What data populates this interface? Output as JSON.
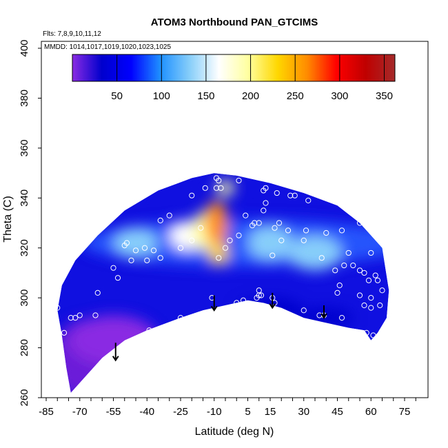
{
  "chart_data": {
    "type": "heatmap",
    "title": "ATOM3 Northbound PAN_GTCIMS",
    "annotations": [
      "Flts: 7,8,9,10,11,12",
      "MMDD: 1014,1017,1019,1020,1023,1025"
    ],
    "xlabel": "Latitude (deg N)",
    "ylabel": "Theta (C)",
    "xlim": [
      -85,
      80
    ],
    "ylim": [
      260,
      405
    ],
    "x_ticks": [
      "-85",
      "-70",
      "-55",
      "-40",
      "-25",
      "-10",
      "5",
      "15",
      "30",
      "45",
      "60",
      "75"
    ],
    "y_ticks": [
      "260",
      "280",
      "300",
      "320",
      "340",
      "360",
      "380",
      "400"
    ],
    "colorbar": {
      "min": 0,
      "max": 362,
      "ticks": [
        "50",
        "100",
        "150",
        "200",
        "250",
        "300",
        "350"
      ],
      "colors": [
        "#8a2be2",
        "#0000cd",
        "#0000ff",
        "#1e90ff",
        "#87cefa",
        "#ffffff",
        "#ffffa0",
        "#ffd700",
        "#ff8c00",
        "#ff0000",
        "#c00000",
        "#a52a2a"
      ]
    },
    "field_boundary": [
      [
        -74,
        262
      ],
      [
        -68,
        268
      ],
      [
        -60,
        276
      ],
      [
        -50,
        283
      ],
      [
        -40,
        287
      ],
      [
        -25,
        292
      ],
      [
        -15,
        295
      ],
      [
        -5,
        297
      ],
      [
        5,
        299
      ],
      [
        12,
        298
      ],
      [
        20,
        296
      ],
      [
        30,
        292
      ],
      [
        40,
        290
      ],
      [
        50,
        288
      ],
      [
        57,
        287
      ],
      [
        60,
        283
      ],
      [
        63,
        286
      ],
      [
        67,
        292
      ],
      [
        68,
        303
      ],
      [
        65,
        320
      ],
      [
        55,
        330
      ],
      [
        45,
        337
      ],
      [
        30,
        342
      ],
      [
        15,
        346
      ],
      [
        0,
        349
      ],
      [
        -10,
        350
      ],
      [
        -20,
        348
      ],
      [
        -35,
        343
      ],
      [
        -50,
        335
      ],
      [
        -62,
        325
      ],
      [
        -72,
        315
      ],
      [
        -78,
        305
      ],
      [
        -80,
        295
      ],
      [
        -78,
        285
      ],
      [
        -76,
        272
      ]
    ],
    "hotspots": [
      {
        "lat": -9,
        "theta": 330,
        "value": 250,
        "rx": 5,
        "ry": 9
      },
      {
        "lat": -8,
        "theta": 318,
        "value": 240,
        "rx": 4,
        "ry": 5
      },
      {
        "lat": -13,
        "theta": 327,
        "value": 200,
        "rx": 7,
        "ry": 8
      },
      {
        "lat": -5,
        "theta": 344,
        "value": 190,
        "rx": 4,
        "ry": 3
      },
      {
        "lat": -22,
        "theta": 325,
        "value": 150,
        "rx": 8,
        "ry": 6
      },
      {
        "lat": 15,
        "theta": 322,
        "value": 140,
        "rx": 10,
        "ry": 7
      },
      {
        "lat": 35,
        "theta": 318,
        "value": 130,
        "rx": 12,
        "ry": 7
      },
      {
        "lat": -45,
        "theta": 322,
        "value": 120,
        "rx": 10,
        "ry": 6
      }
    ],
    "low_regions": [
      {
        "lat": -55,
        "theta": 283,
        "value": 10,
        "rx": 20,
        "ry": 10
      },
      {
        "lat": 15,
        "theta": 295,
        "value": 20,
        "rx": 15,
        "ry": 5
      },
      {
        "lat": 40,
        "theta": 292,
        "value": 25,
        "rx": 12,
        "ry": 4
      }
    ],
    "arrows": [
      {
        "lat": -54,
        "theta_top": 282,
        "theta_bottom": 275
      },
      {
        "lat": -10,
        "theta_top": 301,
        "theta_bottom": 295
      },
      {
        "lat": 16,
        "theta_top": 302,
        "theta_bottom": 296
      },
      {
        "lat": 39,
        "theta_top": 297,
        "theta_bottom": 292
      }
    ],
    "points": [
      [
        -80,
        296
      ],
      [
        -77,
        286
      ],
      [
        -74,
        292
      ],
      [
        -72,
        292
      ],
      [
        -70,
        293
      ],
      [
        -63,
        293
      ],
      [
        -62,
        302
      ],
      [
        -69,
        263
      ],
      [
        -63,
        270
      ],
      [
        -53,
        308
      ],
      [
        -55,
        312
      ],
      [
        -47,
        315
      ],
      [
        -50,
        321
      ],
      [
        -49,
        322
      ],
      [
        -45,
        319
      ],
      [
        -41,
        320
      ],
      [
        -40,
        315
      ],
      [
        -39,
        287
      ],
      [
        -37,
        319
      ],
      [
        -34,
        331
      ],
      [
        -34,
        316
      ],
      [
        -30,
        333
      ],
      [
        -25,
        320
      ],
      [
        -25,
        292
      ],
      [
        -20,
        323
      ],
      [
        -20,
        341
      ],
      [
        -16,
        328
      ],
      [
        -14,
        344
      ],
      [
        -11,
        300
      ],
      [
        -9,
        344
      ],
      [
        -9,
        348
      ],
      [
        -8,
        347
      ],
      [
        -8,
        316
      ],
      [
        -7,
        344
      ],
      [
        -5,
        320
      ],
      [
        -3,
        323
      ],
      [
        1,
        325
      ],
      [
        -3,
        296
      ],
      [
        0,
        298
      ],
      [
        1,
        347
      ],
      [
        3,
        299
      ],
      [
        4,
        333
      ],
      [
        7,
        329
      ],
      [
        8,
        330
      ],
      [
        10,
        303
      ],
      [
        10,
        301
      ],
      [
        11,
        301
      ],
      [
        9,
        300
      ],
      [
        10,
        330
      ],
      [
        12,
        335
      ],
      [
        12,
        343
      ],
      [
        13,
        344
      ],
      [
        13,
        338
      ],
      [
        16,
        317
      ],
      [
        16,
        300
      ],
      [
        17,
        298
      ],
      [
        17,
        328
      ],
      [
        18,
        342
      ],
      [
        19,
        330
      ],
      [
        20,
        323
      ],
      [
        23,
        327
      ],
      [
        24,
        341
      ],
      [
        26,
        341
      ],
      [
        30,
        323
      ],
      [
        30,
        295
      ],
      [
        31,
        327
      ],
      [
        32,
        339
      ],
      [
        37,
        293
      ],
      [
        38,
        316
      ],
      [
        39,
        293
      ],
      [
        40,
        326
      ],
      [
        44,
        311
      ],
      [
        45,
        302
      ],
      [
        46,
        305
      ],
      [
        47,
        327
      ],
      [
        47,
        292
      ],
      [
        48,
        313
      ],
      [
        50,
        318
      ],
      [
        52,
        313
      ],
      [
        53,
        286
      ],
      [
        54,
        286
      ],
      [
        55,
        330
      ],
      [
        55,
        301
      ],
      [
        55,
        311
      ],
      [
        57,
        297
      ],
      [
        57,
        310
      ],
      [
        58,
        286
      ],
      [
        59,
        307
      ],
      [
        60,
        296
      ],
      [
        60,
        300
      ],
      [
        60,
        318
      ],
      [
        61,
        285
      ],
      [
        62,
        309
      ],
      [
        63,
        307
      ],
      [
        64,
        297
      ],
      [
        65,
        278
      ],
      [
        65,
        303
      ]
    ]
  }
}
